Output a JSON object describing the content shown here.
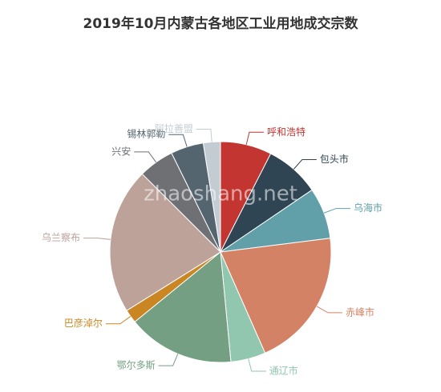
{
  "chart_data": {
    "type": "pie",
    "title": "2019年10月内蒙古各地区工业用地成交宗数",
    "watermark": "zhaoshang.net",
    "categories": [
      "呼和浩特",
      "包头市",
      "乌海市",
      "赤峰市",
      "通辽市",
      "鄂尔多斯",
      "巴彦淖尔",
      "乌兰察布",
      "兴安",
      "锡林郭勒",
      "阿拉善盟"
    ],
    "values": [
      7.5,
      8,
      7.5,
      20.4,
      5.1,
      15.6,
      2,
      21.4,
      5.2,
      4.8,
      2.5
    ],
    "colors": [
      "#c23531",
      "#2f4554",
      "#61a0a8",
      "#d48265",
      "#91c7ae",
      "#749f83",
      "#ca8622",
      "#bda29a",
      "#6e7074",
      "#546570",
      "#c4ccd3"
    ]
  }
}
